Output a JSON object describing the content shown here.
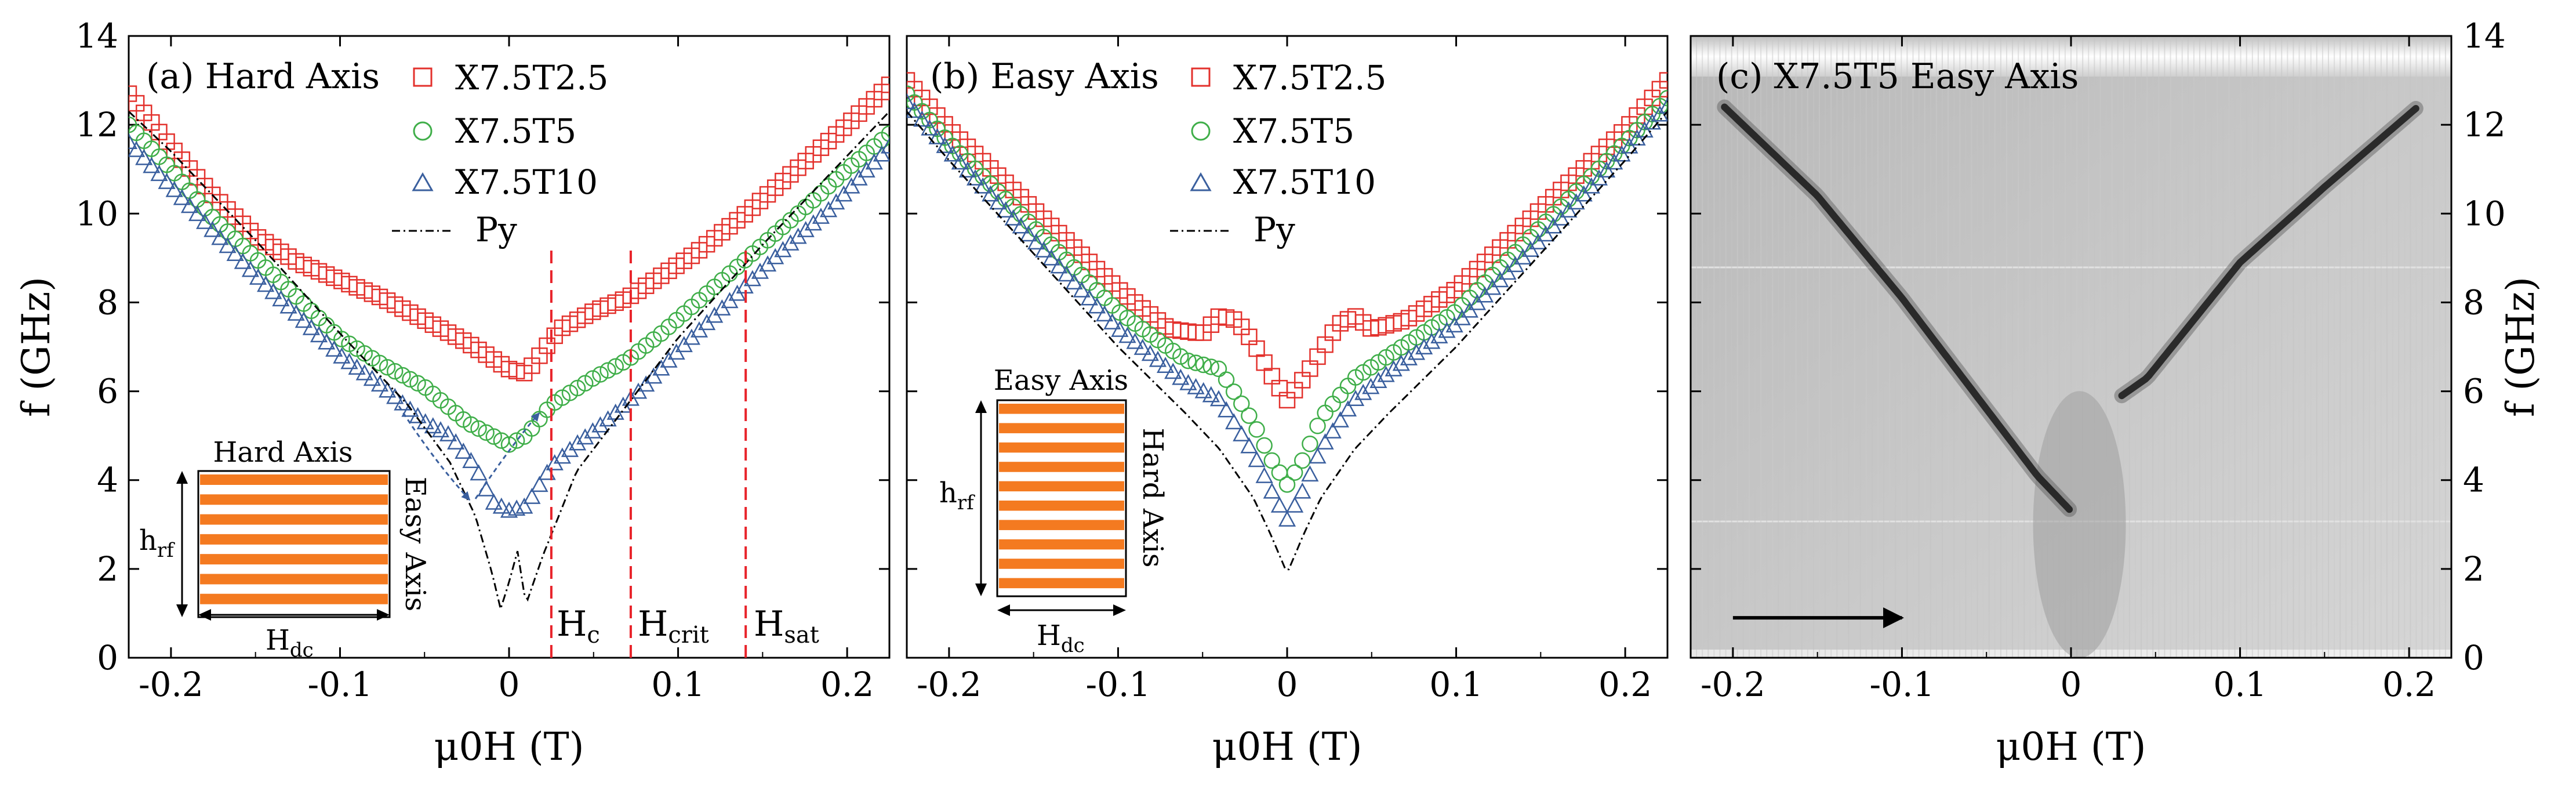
{
  "chart_data": [
    {
      "type": "scatter",
      "panel": "a",
      "title": "(a) Hard Axis",
      "xlabel": "μ0H (T)",
      "ylabel": "f (GHz)",
      "xlim": [
        -0.225,
        0.225
      ],
      "ylim": [
        0,
        14
      ],
      "xticks": [
        "-0.2",
        "-0.1",
        "0",
        "0.1",
        "0.2"
      ],
      "yticks": [
        "0",
        "2",
        "4",
        "6",
        "8",
        "10",
        "12",
        "14"
      ],
      "legend": [
        "X7.5T2.5",
        "X7.5T5",
        "X7.5T10",
        "Py"
      ],
      "markers": [
        "square",
        "circle",
        "triangle",
        "dash-dot line"
      ],
      "colors": {
        "X7.5T2.5": "#e3312c",
        "X7.5T5": "#3fae49",
        "X7.5T10": "#3a5f9e",
        "Py": "#000000",
        "guide": "#e8232a"
      },
      "series": [
        {
          "name": "X7.5T2.5",
          "x": [
            -0.225,
            -0.2,
            -0.175,
            -0.15,
            -0.125,
            -0.1,
            -0.075,
            -0.05,
            -0.025,
            0.0,
            0.01,
            0.02,
            0.03,
            0.05,
            0.07,
            0.09,
            0.11,
            0.14,
            0.17,
            0.2,
            0.225
          ],
          "y": [
            12.7,
            11.5,
            10.4,
            9.5,
            8.9,
            8.5,
            8.1,
            7.6,
            7.1,
            6.5,
            6.4,
            6.9,
            7.4,
            7.8,
            8.1,
            8.6,
            9.1,
            10.0,
            11.0,
            12.0,
            12.9
          ]
        },
        {
          "name": "X7.5T5",
          "x": [
            -0.225,
            -0.2,
            -0.175,
            -0.15,
            -0.125,
            -0.1,
            -0.075,
            -0.05,
            -0.025,
            0.0,
            0.01,
            0.025,
            0.05,
            0.07,
            0.09,
            0.12,
            0.15,
            0.18,
            0.2,
            0.225
          ],
          "y": [
            12.0,
            11.0,
            9.9,
            9.0,
            8.1,
            7.2,
            6.6,
            6.1,
            5.3,
            4.8,
            5.0,
            5.7,
            6.3,
            6.7,
            7.3,
            8.3,
            9.3,
            10.3,
            11.0,
            11.8
          ]
        },
        {
          "name": "X7.5T10",
          "x": [
            -0.225,
            -0.2,
            -0.175,
            -0.15,
            -0.125,
            -0.1,
            -0.075,
            -0.05,
            -0.035,
            -0.02,
            -0.01,
            0.0,
            0.01,
            0.025,
            0.04,
            0.06,
            0.08,
            0.1,
            0.13,
            0.16,
            0.19,
            0.225
          ],
          "y": [
            11.6,
            10.6,
            9.6,
            8.6,
            7.7,
            6.8,
            6.1,
            5.3,
            5.0,
            4.3,
            3.5,
            3.3,
            3.4,
            4.3,
            4.8,
            5.4,
            6.1,
            6.9,
            8.0,
            9.1,
            10.1,
            11.5
          ]
        },
        {
          "name": "Py",
          "x": [
            -0.225,
            -0.2,
            -0.15,
            -0.1,
            -0.06,
            -0.035,
            -0.02,
            -0.01,
            -0.005,
            0.0,
            0.005,
            0.01,
            0.02,
            0.04,
            0.07,
            0.1,
            0.15,
            0.2,
            0.225
          ],
          "y": [
            12.3,
            11.4,
            9.4,
            7.3,
            5.7,
            4.4,
            3.2,
            1.9,
            1.1,
            1.7,
            2.4,
            1.2,
            2.3,
            4.2,
            5.7,
            7.2,
            9.3,
            11.3,
            12.3
          ]
        }
      ],
      "vlines": [
        {
          "x": 0.025,
          "label": "Hc"
        },
        {
          "x": 0.072,
          "label": "Hcrit"
        },
        {
          "x": 0.14,
          "label": "Hsat"
        }
      ],
      "inset": {
        "top": "Hard Axis",
        "side": "Easy Axis",
        "left": "hrf",
        "bottom": "Hdc",
        "stripe_color": "#f47a20"
      }
    },
    {
      "type": "scatter",
      "panel": "b",
      "title": "(b) Easy Axis",
      "xlabel": "μ0H (T)",
      "ylabel": "",
      "xlim": [
        -0.225,
        0.225
      ],
      "ylim": [
        0,
        14
      ],
      "xticks": [
        "-0.2",
        "-0.1",
        "0",
        "0.1",
        "0.2"
      ],
      "legend": [
        "X7.5T2.5",
        "X7.5T5",
        "X7.5T10",
        "Py"
      ],
      "series": [
        {
          "name": "X7.5T2.5",
          "x": [
            -0.225,
            -0.2,
            -0.15,
            -0.1,
            -0.07,
            -0.05,
            -0.04,
            -0.03,
            -0.02,
            -0.01,
            0.0,
            0.01,
            0.02,
            0.03,
            0.04,
            0.05,
            0.07,
            0.1,
            0.15,
            0.2,
            0.225
          ],
          "y": [
            13.0,
            11.9,
            10.1,
            8.3,
            7.4,
            7.3,
            7.7,
            7.6,
            7.1,
            6.4,
            5.8,
            6.3,
            6.9,
            7.5,
            7.7,
            7.4,
            7.6,
            8.3,
            10.1,
            11.9,
            13.0
          ]
        },
        {
          "name": "X7.5T5",
          "x": [
            -0.225,
            -0.2,
            -0.15,
            -0.1,
            -0.06,
            -0.04,
            -0.02,
            -0.01,
            0.0,
            0.01,
            0.02,
            0.04,
            0.06,
            0.1,
            0.15,
            0.2,
            0.225
          ],
          "y": [
            12.7,
            11.6,
            9.7,
            7.8,
            6.7,
            6.5,
            5.3,
            4.5,
            3.9,
            4.5,
            5.4,
            6.3,
            6.8,
            7.8,
            9.7,
            11.6,
            12.6
          ]
        },
        {
          "name": "X7.5T10",
          "x": [
            -0.225,
            -0.2,
            -0.15,
            -0.1,
            -0.06,
            -0.04,
            -0.02,
            -0.01,
            0.0,
            0.01,
            0.02,
            0.04,
            0.06,
            0.1,
            0.15,
            0.2,
            0.225
          ],
          "y": [
            12.5,
            11.4,
            9.4,
            7.4,
            6.2,
            5.8,
            4.6,
            3.8,
            3.1,
            3.8,
            4.7,
            5.8,
            6.4,
            7.5,
            9.4,
            11.4,
            12.4
          ]
        },
        {
          "name": "Py",
          "x": [
            -0.225,
            -0.2,
            -0.15,
            -0.1,
            -0.06,
            -0.04,
            -0.02,
            -0.01,
            0.0,
            0.01,
            0.02,
            0.04,
            0.06,
            0.1,
            0.15,
            0.2,
            0.225
          ],
          "y": [
            12.3,
            11.2,
            9.1,
            7.0,
            5.5,
            4.7,
            3.6,
            2.8,
            1.9,
            2.8,
            3.6,
            4.7,
            5.5,
            7.0,
            9.1,
            11.2,
            12.3
          ]
        }
      ],
      "inset": {
        "top": "Easy Axis",
        "side": "Hard Axis",
        "left": "hrf",
        "bottom": "Hdc",
        "stripe_color": "#f47a20"
      }
    },
    {
      "type": "heatmap",
      "panel": "c",
      "title": "(c) X7.5T5 Easy Axis",
      "xlabel": "μ0H (T)",
      "ylabel": "f (GHz)",
      "xlim": [
        -0.225,
        0.225
      ],
      "ylim": [
        0,
        14
      ],
      "xticks": [
        "-0.2",
        "-0.1",
        "0",
        "0.1",
        "0.2"
      ],
      "yticks": [
        "0",
        "2",
        "4",
        "6",
        "8",
        "10",
        "12",
        "14"
      ],
      "ridges": [
        {
          "name": "left branch",
          "x": [
            -0.205,
            -0.15,
            -0.1,
            -0.05,
            -0.02,
            0.0
          ],
          "y": [
            12.4,
            10.4,
            8.1,
            5.6,
            4.1,
            3.3
          ]
        },
        {
          "name": "right branch",
          "x": [
            0.03,
            0.045,
            0.1,
            0.15,
            0.205
          ],
          "y": [
            5.9,
            6.3,
            8.9,
            10.6,
            12.4
          ]
        }
      ],
      "sweep_arrow": {
        "from_x": -0.2,
        "to_x": -0.1,
        "y": 0.9
      }
    }
  ]
}
